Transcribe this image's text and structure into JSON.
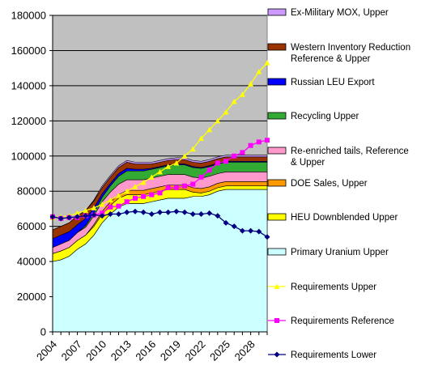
{
  "chart_data": {
    "type": "area",
    "ylim": [
      0,
      180000
    ],
    "y_ticks": [
      "0",
      "20000",
      "40000",
      "60000",
      "80000",
      "100000",
      "120000",
      "140000",
      "160000",
      "180000"
    ],
    "x_tick_labels": [
      "2004",
      "2007",
      "2010",
      "2013",
      "2016",
      "2019",
      "2022",
      "2025",
      "2028"
    ],
    "x": [
      2004,
      2005,
      2006,
      2007,
      2008,
      2009,
      2010,
      2011,
      2012,
      2013,
      2014,
      2015,
      2016,
      2017,
      2018,
      2019,
      2020,
      2021,
      2022,
      2023,
      2024,
      2025,
      2026,
      2027,
      2028,
      2029,
      2030
    ],
    "plot_background": "#c0c0c0",
    "grid": "horizontal",
    "legend_position": "right",
    "stacked_series": [
      {
        "name": "Primary Uranium Upper",
        "color": "#ccffff",
        "values": [
          40000,
          41000,
          43000,
          47000,
          50000,
          55000,
          62000,
          67000,
          71000,
          73000,
          73000,
          73000,
          74000,
          75000,
          76000,
          76000,
          76000,
          77000,
          77000,
          78000,
          80000,
          81000,
          81000,
          81000,
          81000,
          81000,
          81000
        ]
      },
      {
        "name": "HEU Downblended Upper",
        "color": "#ffff00",
        "values": [
          4500,
          5000,
          5000,
          5000,
          5000,
          5000,
          5000,
          5000,
          5000,
          5000,
          5000,
          5000,
          5000,
          5000,
          5000,
          5000,
          5000,
          2500,
          2000,
          2000,
          2000,
          2000,
          2000,
          2000,
          2000,
          2000,
          2000
        ]
      },
      {
        "name": "DOE Sales, Upper",
        "color": "#ff9900",
        "values": [
          0,
          0,
          0,
          0,
          0,
          1000,
          1500,
          2000,
          2000,
          2500,
          2500,
          2500,
          2500,
          2500,
          2500,
          2500,
          2500,
          2500,
          2500,
          2500,
          2500,
          2500,
          2500,
          2500,
          2500,
          2500,
          2500
        ]
      },
      {
        "name": "Re-enriched tails, Reference & Upper",
        "color": "#ff99cc",
        "values": [
          3500,
          4000,
          4000,
          4500,
          4500,
          5000,
          5500,
          5500,
          6000,
          6000,
          6000,
          6000,
          6000,
          6000,
          6000,
          6000,
          6000,
          6000,
          6000,
          6000,
          5500,
          5500,
          5500,
          5500,
          5500,
          5500,
          5500
        ]
      },
      {
        "name": "Recycling Upper",
        "color": "#33aa33",
        "values": [
          0,
          0,
          0,
          0,
          1000,
          1500,
          2500,
          3500,
          4500,
          5000,
          5000,
          5000,
          5000,
          5000,
          5000,
          5500,
          5500,
          5500,
          5500,
          5500,
          5500,
          5500,
          5500,
          5500,
          5500,
          5500,
          5500
        ]
      },
      {
        "name": "Russian LEU Export",
        "color": "#0000ff",
        "values": [
          5000,
          5000,
          5000,
          4500,
          4000,
          3000,
          2000,
          1500,
          1500,
          1500,
          1000,
          1000,
          500,
          500,
          500,
          500,
          500,
          500,
          500,
          500,
          500,
          500,
          500,
          500,
          500,
          500,
          500
        ]
      },
      {
        "name": "Western Inventory Reduction Reference & Upper",
        "color": "#993300",
        "values": [
          5000,
          5000,
          5000,
          5000,
          4500,
          4000,
          3500,
          3500,
          3500,
          3500,
          3000,
          3000,
          2500,
          2500,
          2500,
          2500,
          2500,
          2500,
          2500,
          2500,
          2500,
          2500,
          2500,
          2500,
          2500,
          2500,
          2500
        ]
      },
      {
        "name": "Ex-Military MOX, Upper",
        "color": "#cc99ff",
        "values": [
          0,
          0,
          0,
          0,
          0,
          500,
          1000,
          1000,
          1000,
          1000,
          1000,
          1000,
          1000,
          1000,
          1000,
          1000,
          1000,
          1000,
          1000,
          1000,
          1000,
          1000,
          1000,
          1000,
          1000,
          1000,
          1000
        ]
      }
    ],
    "line_series": [
      {
        "name": "Requirements Upper",
        "color": "#ffff00",
        "marker": "triangle",
        "values": [
          65000,
          65500,
          66000,
          67500,
          69000,
          70500,
          72500,
          75000,
          77500,
          80000,
          82500,
          85000,
          88000,
          91000,
          94000,
          96000,
          100000,
          104000,
          110000,
          115000,
          120000,
          125000,
          131000,
          135000,
          141000,
          148000,
          153000
        ]
      },
      {
        "name": "Requirements Reference",
        "color": "#ff00ff",
        "marker": "square",
        "values": [
          65500,
          64500,
          65000,
          65000,
          66000,
          66500,
          67500,
          71000,
          71500,
          74000,
          76000,
          77000,
          78000,
          79000,
          82000,
          82000,
          83000,
          84000,
          88000,
          92000,
          96000,
          97000,
          100000,
          102000,
          106000,
          108000,
          109000
        ]
      },
      {
        "name": "Requirements Lower",
        "color": "#000080",
        "marker": "diamond",
        "values": [
          65500,
          64500,
          65000,
          65500,
          66000,
          66500,
          66000,
          67000,
          67000,
          68000,
          68500,
          68000,
          67000,
          68000,
          68000,
          68500,
          68000,
          67000,
          67000,
          67500,
          66000,
          62000,
          60000,
          57500,
          57500,
          57000,
          54000
        ]
      }
    ]
  }
}
